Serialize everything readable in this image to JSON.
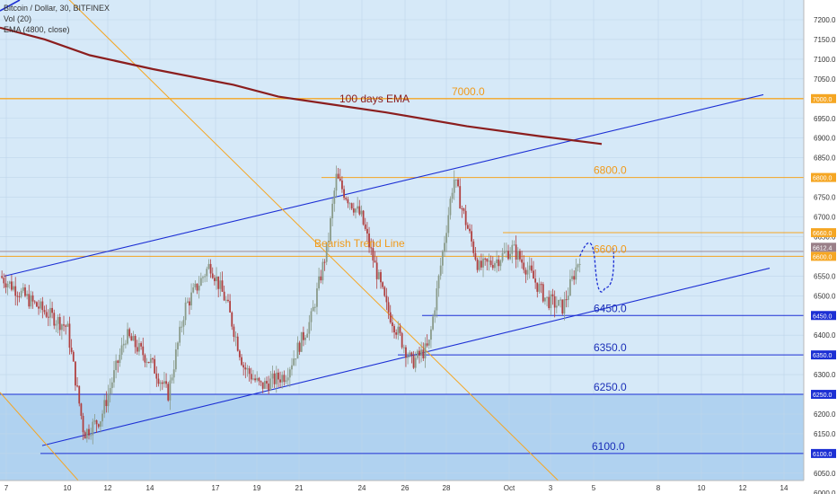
{
  "header": {
    "symbol": "Bitcoin / Dollar, 30, BITFINEX",
    "indicator_vol": "Vol (20)",
    "indicator_ema": "EMA (4800, close)"
  },
  "annotations": {
    "ema_label": "100 days EMA",
    "trend_label": "Bearish Trend Line"
  },
  "colors": {
    "background": "#d6e9f8",
    "zone": "#b0d2f0",
    "grid": "#bfd6ea",
    "orange": "#f5a623",
    "orange_text": "#f09a1a",
    "blue": "#1c2fd4",
    "blue_text": "#1b2fb8",
    "ema": "#8b1e1e",
    "candle_up": "#8a9b8a",
    "candle_down": "#b04040",
    "price_tag": "#9a7f88"
  },
  "chart_data": {
    "type": "candlestick",
    "x_ticks": [
      "7",
      "10",
      "12",
      "14",
      "17",
      "19",
      "21",
      "24",
      "26",
      "28",
      "Oct",
      "3",
      "5",
      "8",
      "10",
      "12",
      "14"
    ],
    "y_ticks": [
      "7200.0",
      "7150.0",
      "7100.0",
      "7050.0",
      "7000.0",
      "6950.0",
      "6900.0",
      "6850.0",
      "6800.0",
      "6750.0",
      "6700.0",
      "6650.0",
      "6600.0",
      "6550.0",
      "6500.0",
      "6450.0",
      "6400.0",
      "6350.0",
      "6300.0",
      "6250.0",
      "6200.0",
      "6150.0",
      "6100.0",
      "6050.0",
      "6000.0"
    ],
    "y_range": [
      6000,
      7240
    ],
    "current_price": "6612.4",
    "horizontal_levels": [
      {
        "label": "7000.0",
        "value": 7000,
        "color": "orange",
        "axis_tag": "7000.0"
      },
      {
        "label": "6800.0",
        "value": 6800,
        "color": "orange",
        "axis_tag": "6800.0"
      },
      {
        "label": "6600.0",
        "value": 6600,
        "color": "orange",
        "axis_tag": "6600.0"
      },
      {
        "label": "6450.0",
        "value": 6450,
        "color": "blue",
        "axis_tag": "6450.0"
      },
      {
        "label": "6350.0",
        "value": 6350,
        "color": "blue",
        "axis_tag": "6350.0"
      },
      {
        "label": "6250.0",
        "value": 6250,
        "color": "blue",
        "axis_tag": "6250.0"
      },
      {
        "label": "6100.0",
        "value": 6100,
        "color": "blue",
        "axis_tag": "6100.0"
      },
      {
        "label": "6000.0",
        "value": 6000,
        "color": "blue",
        "axis_tag": ""
      }
    ],
    "extra_axis_tag": {
      "label": "6660.0",
      "value": 6660
    },
    "support_zone": {
      "from": 6000,
      "to": 6250
    },
    "price_series": [
      [
        0,
        6550
      ],
      [
        4,
        6480
      ],
      [
        8,
        6420
      ],
      [
        10,
        6150
      ],
      [
        12,
        6190
      ],
      [
        15,
        6400
      ],
      [
        18,
        6330
      ],
      [
        20,
        6250
      ],
      [
        22,
        6470
      ],
      [
        25,
        6580
      ],
      [
        27,
        6480
      ],
      [
        29,
        6320
      ],
      [
        31,
        6270
      ],
      [
        32,
        6280
      ],
      [
        34,
        6300
      ],
      [
        37,
        6440
      ],
      [
        39,
        6630
      ],
      [
        40,
        6800
      ],
      [
        41,
        6760
      ],
      [
        43,
        6700
      ],
      [
        46,
        6470
      ],
      [
        49,
        6330
      ],
      [
        51,
        6370
      ],
      [
        54,
        6800
      ],
      [
        55,
        6720
      ],
      [
        57,
        6570
      ],
      [
        59,
        6590
      ],
      [
        61,
        6620
      ],
      [
        63,
        6560
      ],
      [
        65,
        6490
      ],
      [
        67,
        6470
      ],
      [
        69,
        6600
      ]
    ],
    "forecast_path": [
      [
        69,
        6600
      ],
      [
        70.5,
        6650
      ],
      [
        72,
        6520
      ],
      [
        73,
        6620
      ]
    ]
  }
}
